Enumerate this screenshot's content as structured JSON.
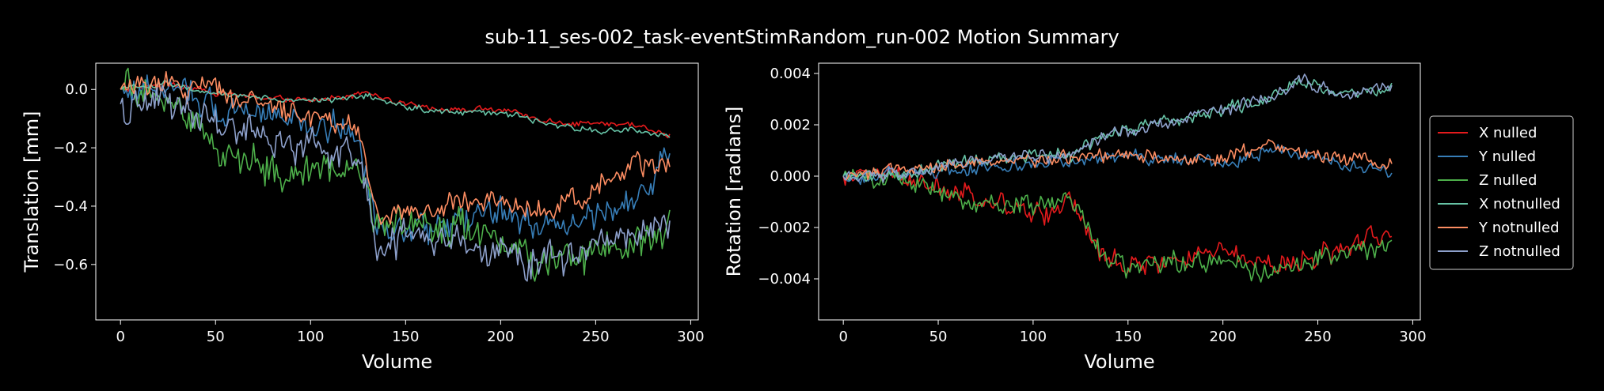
{
  "figure": {
    "title": "sub-11_ses-002_task-eventStimRandom_run-002 Motion Summary"
  },
  "colors": {
    "background": "#000000",
    "axes_edge": "#ffffff",
    "X nulled": "#e41a1c",
    "Y nulled": "#377eb8",
    "Z nulled": "#4daf4a",
    "X notnulled": "#66c2a5",
    "Y notnulled": "#fc8d62",
    "Z notnulled": "#8da0cb"
  },
  "chart_data": [
    {
      "type": "line",
      "title": "",
      "xlabel": "Volume",
      "ylabel": "Translation [mm]",
      "xlim": [
        -13,
        304
      ],
      "ylim": [
        -0.79,
        0.09
      ],
      "xticks": [
        0,
        50,
        100,
        150,
        200,
        250,
        300
      ],
      "yticks": [
        0.0,
        -0.2,
        -0.4,
        -0.6
      ],
      "ytick_labels": [
        "0.0",
        "−0.2",
        "−0.4",
        "−0.6"
      ],
      "legend": "none",
      "grid": false,
      "n_volumes": 290,
      "series": [
        {
          "name": "X nulled",
          "keypoints": [
            [
              0,
              0.0
            ],
            [
              25,
              0.02
            ],
            [
              50,
              -0.01
            ],
            [
              75,
              -0.03
            ],
            [
              100,
              -0.04
            ],
            [
              120,
              -0.02
            ],
            [
              130,
              -0.01
            ],
            [
              150,
              -0.05
            ],
            [
              175,
              -0.07
            ],
            [
              200,
              -0.07
            ],
            [
              225,
              -0.11
            ],
            [
              250,
              -0.12
            ],
            [
              270,
              -0.12
            ],
            [
              289,
              -0.16
            ]
          ],
          "noise": 0.012
        },
        {
          "name": "Y nulled",
          "keypoints": [
            [
              0,
              0.0
            ],
            [
              25,
              0.0
            ],
            [
              50,
              -0.05
            ],
            [
              75,
              -0.08
            ],
            [
              100,
              -0.12
            ],
            [
              125,
              -0.15
            ],
            [
              135,
              -0.5
            ],
            [
              150,
              -0.5
            ],
            [
              175,
              -0.45
            ],
            [
              200,
              -0.42
            ],
            [
              225,
              -0.48
            ],
            [
              250,
              -0.42
            ],
            [
              270,
              -0.4
            ],
            [
              289,
              -0.22
            ]
          ],
          "noise": 0.06
        },
        {
          "name": "Z nulled",
          "keypoints": [
            [
              0,
              0.0
            ],
            [
              25,
              -0.02
            ],
            [
              50,
              -0.2
            ],
            [
              75,
              -0.25
            ],
            [
              100,
              -0.3
            ],
            [
              125,
              -0.25
            ],
            [
              135,
              -0.48
            ],
            [
              150,
              -0.45
            ],
            [
              175,
              -0.48
            ],
            [
              200,
              -0.5
            ],
            [
              220,
              -0.62
            ],
            [
              250,
              -0.55
            ],
            [
              270,
              -0.55
            ],
            [
              289,
              -0.45
            ]
          ],
          "noise": 0.08
        },
        {
          "name": "X notnulled",
          "keypoints": [
            [
              0,
              0.0
            ],
            [
              25,
              0.02
            ],
            [
              50,
              -0.01
            ],
            [
              75,
              -0.03
            ],
            [
              100,
              -0.04
            ],
            [
              120,
              -0.03
            ],
            [
              130,
              -0.02
            ],
            [
              150,
              -0.06
            ],
            [
              175,
              -0.08
            ],
            [
              200,
              -0.08
            ],
            [
              225,
              -0.12
            ],
            [
              250,
              -0.14
            ],
            [
              270,
              -0.14
            ],
            [
              289,
              -0.16
            ]
          ],
          "noise": 0.012
        },
        {
          "name": "Y notnulled",
          "keypoints": [
            [
              0,
              0.0
            ],
            [
              25,
              0.01
            ],
            [
              50,
              0.0
            ],
            [
              75,
              -0.05
            ],
            [
              100,
              -0.1
            ],
            [
              125,
              -0.12
            ],
            [
              135,
              -0.45
            ],
            [
              150,
              -0.42
            ],
            [
              175,
              -0.4
            ],
            [
              200,
              -0.38
            ],
            [
              225,
              -0.42
            ],
            [
              250,
              -0.35
            ],
            [
              270,
              -0.25
            ],
            [
              289,
              -0.28
            ]
          ],
          "noise": 0.05
        },
        {
          "name": "Z notnulled",
          "keypoints": [
            [
              0,
              -0.05
            ],
            [
              25,
              -0.05
            ],
            [
              50,
              -0.12
            ],
            [
              75,
              -0.15
            ],
            [
              100,
              -0.2
            ],
            [
              125,
              -0.22
            ],
            [
              135,
              -0.55
            ],
            [
              150,
              -0.5
            ],
            [
              175,
              -0.52
            ],
            [
              200,
              -0.55
            ],
            [
              225,
              -0.6
            ],
            [
              250,
              -0.52
            ],
            [
              270,
              -0.5
            ],
            [
              289,
              -0.48
            ]
          ],
          "noise": 0.07
        }
      ]
    },
    {
      "type": "line",
      "title": "",
      "xlabel": "Volume",
      "ylabel": "Rotation [radians]",
      "xlim": [
        -13,
        304
      ],
      "ylim": [
        -0.0056,
        0.0044
      ],
      "xticks": [
        0,
        50,
        100,
        150,
        200,
        250,
        300
      ],
      "yticks": [
        0.004,
        0.002,
        0.0,
        -0.002,
        -0.004
      ],
      "ytick_labels": [
        "0.004",
        "0.002",
        "0.000",
        "−0.002",
        "−0.004"
      ],
      "legend": "outside-right",
      "grid": false,
      "n_volumes": 290,
      "series": [
        {
          "name": "X nulled",
          "keypoints": [
            [
              0,
              0.0
            ],
            [
              25,
              0.0
            ],
            [
              50,
              -0.0005
            ],
            [
              75,
              -0.001
            ],
            [
              100,
              -0.0015
            ],
            [
              120,
              -0.001
            ],
            [
              135,
              -0.003
            ],
            [
              150,
              -0.0035
            ],
            [
              175,
              -0.0032
            ],
            [
              200,
              -0.003
            ],
            [
              225,
              -0.0035
            ],
            [
              250,
              -0.0032
            ],
            [
              270,
              -0.0025
            ],
            [
              289,
              -0.0022
            ]
          ],
          "noise": 0.0005
        },
        {
          "name": "Y nulled",
          "keypoints": [
            [
              0,
              0.0
            ],
            [
              25,
              0.0
            ],
            [
              50,
              0.0002
            ],
            [
              75,
              0.0004
            ],
            [
              100,
              0.0005
            ],
            [
              120,
              0.0006
            ],
            [
              135,
              0.0007
            ],
            [
              150,
              0.0008
            ],
            [
              175,
              0.0006
            ],
            [
              200,
              0.0005
            ],
            [
              225,
              0.001
            ],
            [
              250,
              0.0007
            ],
            [
              270,
              0.0004
            ],
            [
              289,
              0.0002
            ]
          ],
          "noise": 0.0003
        },
        {
          "name": "Z nulled",
          "keypoints": [
            [
              0,
              0.0
            ],
            [
              25,
              0.0
            ],
            [
              50,
              -0.0005
            ],
            [
              75,
              -0.001
            ],
            [
              100,
              -0.0012
            ],
            [
              120,
              -0.0008
            ],
            [
              135,
              -0.0028
            ],
            [
              150,
              -0.0035
            ],
            [
              175,
              -0.0032
            ],
            [
              200,
              -0.0035
            ],
            [
              225,
              -0.0038
            ],
            [
              250,
              -0.0032
            ],
            [
              270,
              -0.0028
            ],
            [
              289,
              -0.0028
            ]
          ],
          "noise": 0.0005
        },
        {
          "name": "X notnulled",
          "keypoints": [
            [
              0,
              0.0
            ],
            [
              25,
              0.0
            ],
            [
              50,
              0.0004
            ],
            [
              75,
              0.0006
            ],
            [
              100,
              0.0008
            ],
            [
              120,
              0.0008
            ],
            [
              135,
              0.0015
            ],
            [
              150,
              0.0018
            ],
            [
              175,
              0.0022
            ],
            [
              200,
              0.0026
            ],
            [
              225,
              0.003
            ],
            [
              240,
              0.0037
            ],
            [
              260,
              0.0032
            ],
            [
              289,
              0.0034
            ]
          ],
          "noise": 0.0003
        },
        {
          "name": "Y notnulled",
          "keypoints": [
            [
              0,
              0.0
            ],
            [
              25,
              0.0002
            ],
            [
              50,
              0.0004
            ],
            [
              75,
              0.0005
            ],
            [
              100,
              0.0006
            ],
            [
              120,
              0.0007
            ],
            [
              135,
              0.0008
            ],
            [
              150,
              0.0008
            ],
            [
              175,
              0.0007
            ],
            [
              200,
              0.0007
            ],
            [
              225,
              0.0012
            ],
            [
              250,
              0.0008
            ],
            [
              270,
              0.0007
            ],
            [
              289,
              0.0004
            ]
          ],
          "noise": 0.0003
        },
        {
          "name": "Z notnulled",
          "keypoints": [
            [
              0,
              0.0
            ],
            [
              25,
              0.0
            ],
            [
              50,
              0.0004
            ],
            [
              75,
              0.0006
            ],
            [
              100,
              0.0008
            ],
            [
              120,
              0.0008
            ],
            [
              135,
              0.0015
            ],
            [
              150,
              0.0018
            ],
            [
              175,
              0.0022
            ],
            [
              200,
              0.0026
            ],
            [
              225,
              0.003
            ],
            [
              240,
              0.0037
            ],
            [
              260,
              0.0032
            ],
            [
              289,
              0.0034
            ]
          ],
          "noise": 0.0003
        }
      ]
    }
  ]
}
